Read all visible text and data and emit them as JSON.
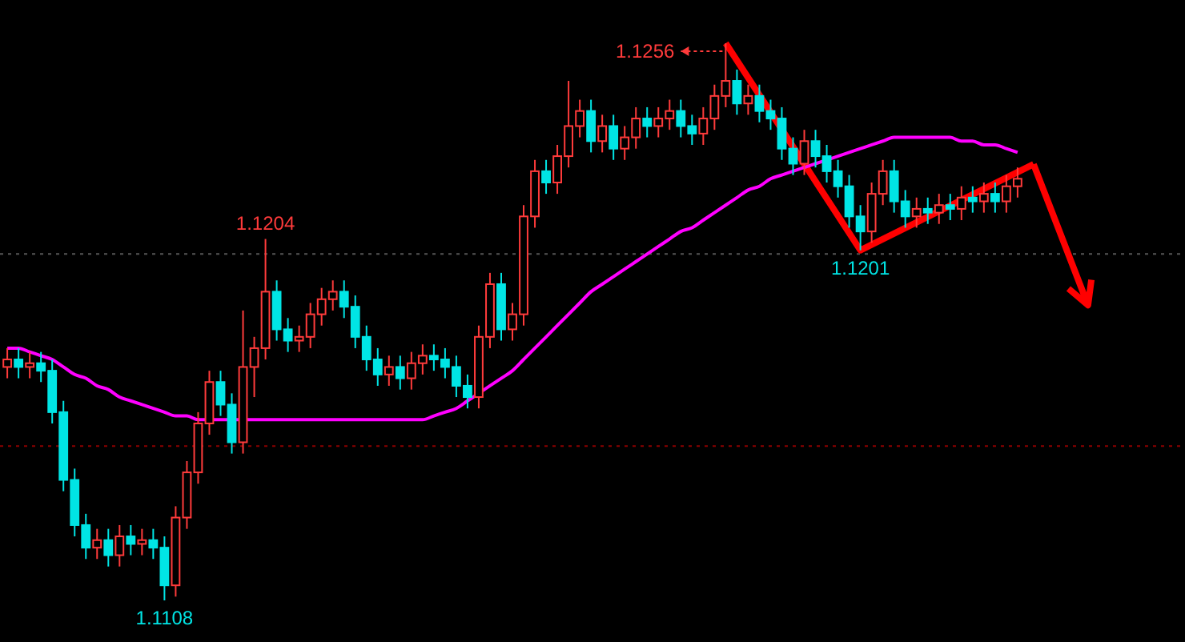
{
  "chart_data": {
    "type": "candlestick",
    "categories": [
      null,
      null,
      null,
      null,
      null,
      null,
      null,
      null,
      null,
      null,
      null,
      null,
      null,
      null,
      null,
      null,
      null,
      null,
      null,
      null,
      null,
      null,
      null,
      null,
      null,
      null,
      null,
      null,
      null,
      null,
      null,
      null,
      null,
      null,
      null,
      null,
      null,
      null,
      null,
      null,
      null,
      null,
      null,
      null,
      null,
      null,
      null,
      null,
      null,
      null,
      null,
      null,
      null,
      null,
      null,
      null,
      null,
      null,
      null,
      null,
      null,
      null,
      null,
      null,
      null,
      null,
      null,
      null,
      null,
      null,
      null,
      null,
      null,
      null,
      null,
      null,
      null,
      null,
      null,
      null,
      null,
      null,
      null,
      null,
      null,
      null,
      null,
      null,
      null,
      null,
      null
    ],
    "ohlc": [
      [
        1.117,
        1.1175,
        1.1167,
        1.1172
      ],
      [
        1.1172,
        1.1175,
        1.1167,
        1.117
      ],
      [
        1.117,
        1.1174,
        1.1167,
        1.1171
      ],
      [
        1.1171,
        1.1174,
        1.1166,
        1.1169
      ],
      [
        1.1169,
        1.1172,
        1.1155,
        1.1158
      ],
      [
        1.1158,
        1.1161,
        1.1137,
        1.114
      ],
      [
        1.114,
        1.1143,
        1.1125,
        1.1128
      ],
      [
        1.1128,
        1.1131,
        1.1119,
        1.1122
      ],
      [
        1.1122,
        1.1127,
        1.1119,
        1.1124
      ],
      [
        1.1124,
        1.1127,
        1.1117,
        1.112
      ],
      [
        1.112,
        1.1128,
        1.1117,
        1.1125
      ],
      [
        1.1125,
        1.1128,
        1.112,
        1.1123
      ],
      [
        1.1123,
        1.1127,
        1.112,
        1.1124
      ],
      [
        1.1124,
        1.1127,
        1.1119,
        1.1122
      ],
      [
        1.1122,
        1.1125,
        1.1108,
        1.1112
      ],
      [
        1.1112,
        1.1133,
        1.1109,
        1.113
      ],
      [
        1.113,
        1.1145,
        1.1127,
        1.1142
      ],
      [
        1.1142,
        1.1158,
        1.1139,
        1.1155
      ],
      [
        1.1155,
        1.1169,
        1.1152,
        1.1166
      ],
      [
        1.1166,
        1.1169,
        1.1157,
        1.116
      ],
      [
        1.116,
        1.1163,
        1.1147,
        1.115
      ],
      [
        1.115,
        1.1185,
        1.1147,
        1.117
      ],
      [
        1.117,
        1.1178,
        1.1162,
        1.1175
      ],
      [
        1.1175,
        1.1204,
        1.1172,
        1.119
      ],
      [
        1.119,
        1.1193,
        1.1177,
        1.118
      ],
      [
        1.118,
        1.1183,
        1.1174,
        1.1177
      ],
      [
        1.1177,
        1.1181,
        1.1174,
        1.1178
      ],
      [
        1.1178,
        1.1187,
        1.1175,
        1.1184
      ],
      [
        1.1184,
        1.1191,
        1.1181,
        1.1188
      ],
      [
        1.1188,
        1.1193,
        1.1185,
        1.119
      ],
      [
        1.119,
        1.1193,
        1.1183,
        1.1186
      ],
      [
        1.1186,
        1.1189,
        1.1175,
        1.1178
      ],
      [
        1.1178,
        1.1181,
        1.1169,
        1.1172
      ],
      [
        1.1172,
        1.1175,
        1.1165,
        1.1168
      ],
      [
        1.1168,
        1.1173,
        1.1165,
        1.117
      ],
      [
        1.117,
        1.1173,
        1.1164,
        1.1167
      ],
      [
        1.1167,
        1.1174,
        1.1164,
        1.1171
      ],
      [
        1.1171,
        1.1176,
        1.1168,
        1.1173
      ],
      [
        1.1173,
        1.1176,
        1.1169,
        1.1172
      ],
      [
        1.1172,
        1.1175,
        1.1167,
        1.117
      ],
      [
        1.117,
        1.1173,
        1.1162,
        1.1165
      ],
      [
        1.1165,
        1.1168,
        1.1159,
        1.1162
      ],
      [
        1.1162,
        1.1181,
        1.1159,
        1.1178
      ],
      [
        1.1178,
        1.1195,
        1.1175,
        1.1192
      ],
      [
        1.1192,
        1.1195,
        1.1177,
        1.118
      ],
      [
        1.118,
        1.1187,
        1.1177,
        1.1184
      ],
      [
        1.1184,
        1.1213,
        1.1181,
        1.121
      ],
      [
        1.121,
        1.1225,
        1.1207,
        1.1222
      ],
      [
        1.1222,
        1.1225,
        1.1216,
        1.1219
      ],
      [
        1.1219,
        1.1229,
        1.1216,
        1.1226
      ],
      [
        1.1226,
        1.1246,
        1.1223,
        1.1234
      ],
      [
        1.1234,
        1.1241,
        1.1231,
        1.1238
      ],
      [
        1.1238,
        1.1241,
        1.1227,
        1.123
      ],
      [
        1.123,
        1.1237,
        1.1227,
        1.1234
      ],
      [
        1.1234,
        1.1237,
        1.1225,
        1.1228
      ],
      [
        1.1228,
        1.1234,
        1.1225,
        1.1231
      ],
      [
        1.1231,
        1.1239,
        1.1228,
        1.1236
      ],
      [
        1.1236,
        1.1239,
        1.1231,
        1.1234
      ],
      [
        1.1234,
        1.1239,
        1.1231,
        1.1236
      ],
      [
        1.1236,
        1.1241,
        1.1233,
        1.1238
      ],
      [
        1.1238,
        1.1241,
        1.1231,
        1.1234
      ],
      [
        1.1234,
        1.1237,
        1.1229,
        1.1232
      ],
      [
        1.1232,
        1.1239,
        1.1229,
        1.1236
      ],
      [
        1.1236,
        1.1245,
        1.1233,
        1.1242
      ],
      [
        1.1242,
        1.1256,
        1.1239,
        1.1246
      ],
      [
        1.1246,
        1.1249,
        1.1237,
        1.124
      ],
      [
        1.124,
        1.1245,
        1.1237,
        1.1242
      ],
      [
        1.1242,
        1.1245,
        1.1235,
        1.1238
      ],
      [
        1.1238,
        1.1241,
        1.1233,
        1.1236
      ],
      [
        1.1236,
        1.1239,
        1.1225,
        1.1228
      ],
      [
        1.1228,
        1.1231,
        1.1221,
        1.1224
      ],
      [
        1.1224,
        1.1233,
        1.1221,
        1.123
      ],
      [
        1.123,
        1.1233,
        1.1223,
        1.1226
      ],
      [
        1.1226,
        1.1229,
        1.1219,
        1.1222
      ],
      [
        1.1222,
        1.1225,
        1.1215,
        1.1218
      ],
      [
        1.1218,
        1.1221,
        1.1207,
        1.121
      ],
      [
        1.121,
        1.1213,
        1.1201,
        1.1206
      ],
      [
        1.1206,
        1.1219,
        1.1203,
        1.1216
      ],
      [
        1.1216,
        1.1225,
        1.1213,
        1.1222
      ],
      [
        1.1222,
        1.1225,
        1.1211,
        1.1214
      ],
      [
        1.1214,
        1.1217,
        1.1207,
        1.121
      ],
      [
        1.121,
        1.1215,
        1.1207,
        1.1212
      ],
      [
        1.1212,
        1.1215,
        1.1208,
        1.1211
      ],
      [
        1.1211,
        1.1216,
        1.1208,
        1.1213
      ],
      [
        1.1213,
        1.1216,
        1.1209,
        1.1212
      ],
      [
        1.1212,
        1.1218,
        1.1209,
        1.1215
      ],
      [
        1.1215,
        1.1218,
        1.1211,
        1.1214
      ],
      [
        1.1214,
        1.1219,
        1.1211,
        1.1216
      ],
      [
        1.1216,
        1.1219,
        1.1211,
        1.1214
      ],
      [
        1.1214,
        1.1221,
        1.1211,
        1.1218
      ],
      [
        1.1218,
        1.1223,
        1.1215,
        1.122
      ]
    ],
    "series": [
      {
        "type": "line",
        "color": "#ff00ff",
        "values": [
          1.1175,
          1.1175,
          1.1174,
          1.1173,
          1.1172,
          1.117,
          1.1168,
          1.1167,
          1.1165,
          1.1164,
          1.1162,
          1.1161,
          1.116,
          1.1159,
          1.1158,
          1.1157,
          1.1157,
          1.1156,
          1.1156,
          1.1156,
          1.1156,
          1.1156,
          1.1156,
          1.1156,
          1.1156,
          1.1156,
          1.1156,
          1.1156,
          1.1156,
          1.1156,
          1.1156,
          1.1156,
          1.1156,
          1.1156,
          1.1156,
          1.1156,
          1.1156,
          1.1156,
          1.1157,
          1.1158,
          1.1159,
          1.1161,
          1.1163,
          1.1165,
          1.1167,
          1.1169,
          1.1172,
          1.1175,
          1.1178,
          1.1181,
          1.1184,
          1.1187,
          1.119,
          1.1192,
          1.1194,
          1.1196,
          1.1198,
          1.12,
          1.1202,
          1.1204,
          1.1206,
          1.1207,
          1.1209,
          1.1211,
          1.1213,
          1.1215,
          1.1217,
          1.1218,
          1.122,
          1.1221,
          1.1222,
          1.1223,
          1.1224,
          1.1225,
          1.1226,
          1.1227,
          1.1228,
          1.1229,
          1.123,
          1.1231,
          1.1231,
          1.1231,
          1.1231,
          1.1231,
          1.1231,
          1.123,
          1.123,
          1.1229,
          1.1229,
          1.1228,
          1.1227
        ]
      }
    ],
    "ref_lines": [
      {
        "axis": "y",
        "value": 1.12,
        "color": "#555555",
        "line_style": "dotted"
      },
      {
        "axis": "y",
        "value": 1.1149,
        "color": "#8b0000",
        "line_style": "dotted"
      }
    ],
    "annotations": [
      "1.1256",
      {
        "text": "1.1204",
        "y": 1.1204
      },
      {
        "text": "1.1201",
        "y": 1.1201
      },
      {
        "text": "1.1108",
        "y": 1.1108
      }
    ]
  }
}
